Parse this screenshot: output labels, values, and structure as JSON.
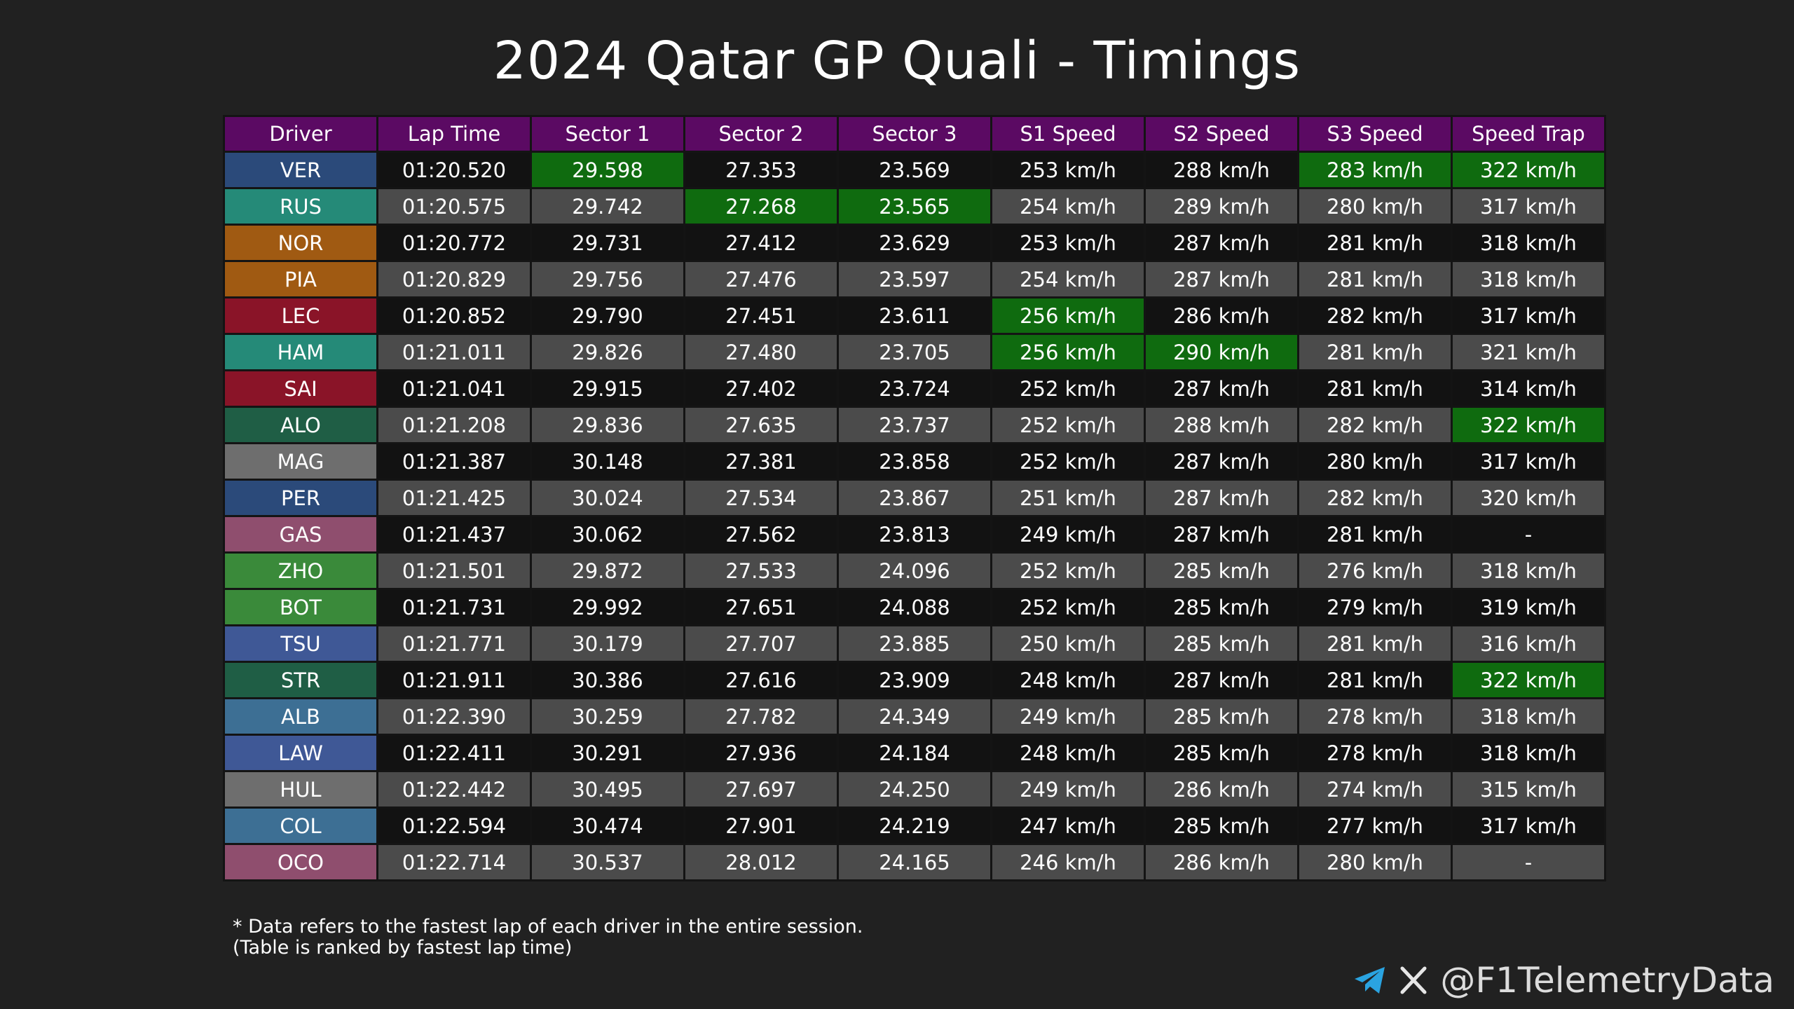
{
  "title": "2024 Qatar GP Quali - Timings",
  "watermark": "@F1TelemetryData",
  "colors": {
    "header": "#5b0a63",
    "best": "#0f6b0f",
    "row_dark": "#121212",
    "row_light": "#4b4b4b",
    "background": "#212121"
  },
  "chart_data": {
    "type": "table",
    "columns": [
      "Driver",
      "Lap Time",
      "Sector 1",
      "Sector 2",
      "Sector 3",
      "S1 Speed",
      "S2 Speed",
      "S3 Speed",
      "Speed Trap"
    ],
    "rows": [
      {
        "driver": "VER",
        "team_color": "#2b4a7a",
        "cells": [
          "01:20.520",
          "29.598",
          "27.353",
          "23.569",
          "253 km/h",
          "288 km/h",
          "283 km/h",
          "322 km/h"
        ],
        "best": [
          false,
          true,
          false,
          false,
          false,
          false,
          true,
          true
        ]
      },
      {
        "driver": "RUS",
        "team_color": "#258a78",
        "cells": [
          "01:20.575",
          "29.742",
          "27.268",
          "23.565",
          "254 km/h",
          "289 km/h",
          "280 km/h",
          "317 km/h"
        ],
        "best": [
          false,
          false,
          true,
          true,
          false,
          false,
          false,
          false
        ]
      },
      {
        "driver": "NOR",
        "team_color": "#a05a12",
        "cells": [
          "01:20.772",
          "29.731",
          "27.412",
          "23.629",
          "253 km/h",
          "287 km/h",
          "281 km/h",
          "318 km/h"
        ],
        "best": [
          false,
          false,
          false,
          false,
          false,
          false,
          false,
          false
        ]
      },
      {
        "driver": "PIA",
        "team_color": "#a05a12",
        "cells": [
          "01:20.829",
          "29.756",
          "27.476",
          "23.597",
          "254 km/h",
          "287 km/h",
          "281 km/h",
          "318 km/h"
        ],
        "best": [
          false,
          false,
          false,
          false,
          false,
          false,
          false,
          false
        ]
      },
      {
        "driver": "LEC",
        "team_color": "#8a1428",
        "cells": [
          "01:20.852",
          "29.790",
          "27.451",
          "23.611",
          "256 km/h",
          "286 km/h",
          "282 km/h",
          "317 km/h"
        ],
        "best": [
          false,
          false,
          false,
          false,
          true,
          false,
          false,
          false
        ]
      },
      {
        "driver": "HAM",
        "team_color": "#258a78",
        "cells": [
          "01:21.011",
          "29.826",
          "27.480",
          "23.705",
          "256 km/h",
          "290 km/h",
          "281 km/h",
          "321 km/h"
        ],
        "best": [
          false,
          false,
          false,
          false,
          true,
          true,
          false,
          false
        ]
      },
      {
        "driver": "SAI",
        "team_color": "#8a1428",
        "cells": [
          "01:21.041",
          "29.915",
          "27.402",
          "23.724",
          "252 km/h",
          "287 km/h",
          "281 km/h",
          "314 km/h"
        ],
        "best": [
          false,
          false,
          false,
          false,
          false,
          false,
          false,
          false
        ]
      },
      {
        "driver": "ALO",
        "team_color": "#1f5e45",
        "cells": [
          "01:21.208",
          "29.836",
          "27.635",
          "23.737",
          "252 km/h",
          "288 km/h",
          "282 km/h",
          "322 km/h"
        ],
        "best": [
          false,
          false,
          false,
          false,
          false,
          false,
          false,
          true
        ]
      },
      {
        "driver": "MAG",
        "team_color": "#6e6e6e",
        "cells": [
          "01:21.387",
          "30.148",
          "27.381",
          "23.858",
          "252 km/h",
          "287 km/h",
          "280 km/h",
          "317 km/h"
        ],
        "best": [
          false,
          false,
          false,
          false,
          false,
          false,
          false,
          false
        ]
      },
      {
        "driver": "PER",
        "team_color": "#2b4a7a",
        "cells": [
          "01:21.425",
          "30.024",
          "27.534",
          "23.867",
          "251 km/h",
          "287 km/h",
          "282 km/h",
          "320 km/h"
        ],
        "best": [
          false,
          false,
          false,
          false,
          false,
          false,
          false,
          false
        ]
      },
      {
        "driver": "GAS",
        "team_color": "#8f4e6e",
        "cells": [
          "01:21.437",
          "30.062",
          "27.562",
          "23.813",
          "249 km/h",
          "287 km/h",
          "281 km/h",
          "-"
        ],
        "best": [
          false,
          false,
          false,
          false,
          false,
          false,
          false,
          false
        ]
      },
      {
        "driver": "ZHO",
        "team_color": "#3a8a3a",
        "cells": [
          "01:21.501",
          "29.872",
          "27.533",
          "24.096",
          "252 km/h",
          "285 km/h",
          "276 km/h",
          "318 km/h"
        ],
        "best": [
          false,
          false,
          false,
          false,
          false,
          false,
          false,
          false
        ]
      },
      {
        "driver": "BOT",
        "team_color": "#3a8a3a",
        "cells": [
          "01:21.731",
          "29.992",
          "27.651",
          "24.088",
          "252 km/h",
          "285 km/h",
          "279 km/h",
          "319 km/h"
        ],
        "best": [
          false,
          false,
          false,
          false,
          false,
          false,
          false,
          false
        ]
      },
      {
        "driver": "TSU",
        "team_color": "#3f5896",
        "cells": [
          "01:21.771",
          "30.179",
          "27.707",
          "23.885",
          "250 km/h",
          "285 km/h",
          "281 km/h",
          "316 km/h"
        ],
        "best": [
          false,
          false,
          false,
          false,
          false,
          false,
          false,
          false
        ]
      },
      {
        "driver": "STR",
        "team_color": "#1f5e45",
        "cells": [
          "01:21.911",
          "30.386",
          "27.616",
          "23.909",
          "248 km/h",
          "287 km/h",
          "281 km/h",
          "322 km/h"
        ],
        "best": [
          false,
          false,
          false,
          false,
          false,
          false,
          false,
          true
        ]
      },
      {
        "driver": "ALB",
        "team_color": "#3d6f94",
        "cells": [
          "01:22.390",
          "30.259",
          "27.782",
          "24.349",
          "249 km/h",
          "285 km/h",
          "278 km/h",
          "318 km/h"
        ],
        "best": [
          false,
          false,
          false,
          false,
          false,
          false,
          false,
          false
        ]
      },
      {
        "driver": "LAW",
        "team_color": "#3f5896",
        "cells": [
          "01:22.411",
          "30.291",
          "27.936",
          "24.184",
          "248 km/h",
          "285 km/h",
          "278 km/h",
          "318 km/h"
        ],
        "best": [
          false,
          false,
          false,
          false,
          false,
          false,
          false,
          false
        ]
      },
      {
        "driver": "HUL",
        "team_color": "#6e6e6e",
        "cells": [
          "01:22.442",
          "30.495",
          "27.697",
          "24.250",
          "249 km/h",
          "286 km/h",
          "274 km/h",
          "315 km/h"
        ],
        "best": [
          false,
          false,
          false,
          false,
          false,
          false,
          false,
          false
        ]
      },
      {
        "driver": "COL",
        "team_color": "#3d6f94",
        "cells": [
          "01:22.594",
          "30.474",
          "27.901",
          "24.219",
          "247 km/h",
          "285 km/h",
          "277 km/h",
          "317 km/h"
        ],
        "best": [
          false,
          false,
          false,
          false,
          false,
          false,
          false,
          false
        ]
      },
      {
        "driver": "OCO",
        "team_color": "#8f4e6e",
        "cells": [
          "01:22.714",
          "30.537",
          "28.012",
          "24.165",
          "246 km/h",
          "286 km/h",
          "280 km/h",
          "-"
        ],
        "best": [
          false,
          false,
          false,
          false,
          false,
          false,
          false,
          false
        ]
      }
    ]
  },
  "footnote": {
    "line1": "* Data refers to the fastest lap of each driver in the entire session.",
    "line2": "(Table is ranked by fastest lap time)"
  },
  "social": {
    "handle": "@F1TelemetryData",
    "icons": [
      "telegram-icon",
      "x-icon"
    ],
    "telegram_color": "#2aa3e0"
  }
}
